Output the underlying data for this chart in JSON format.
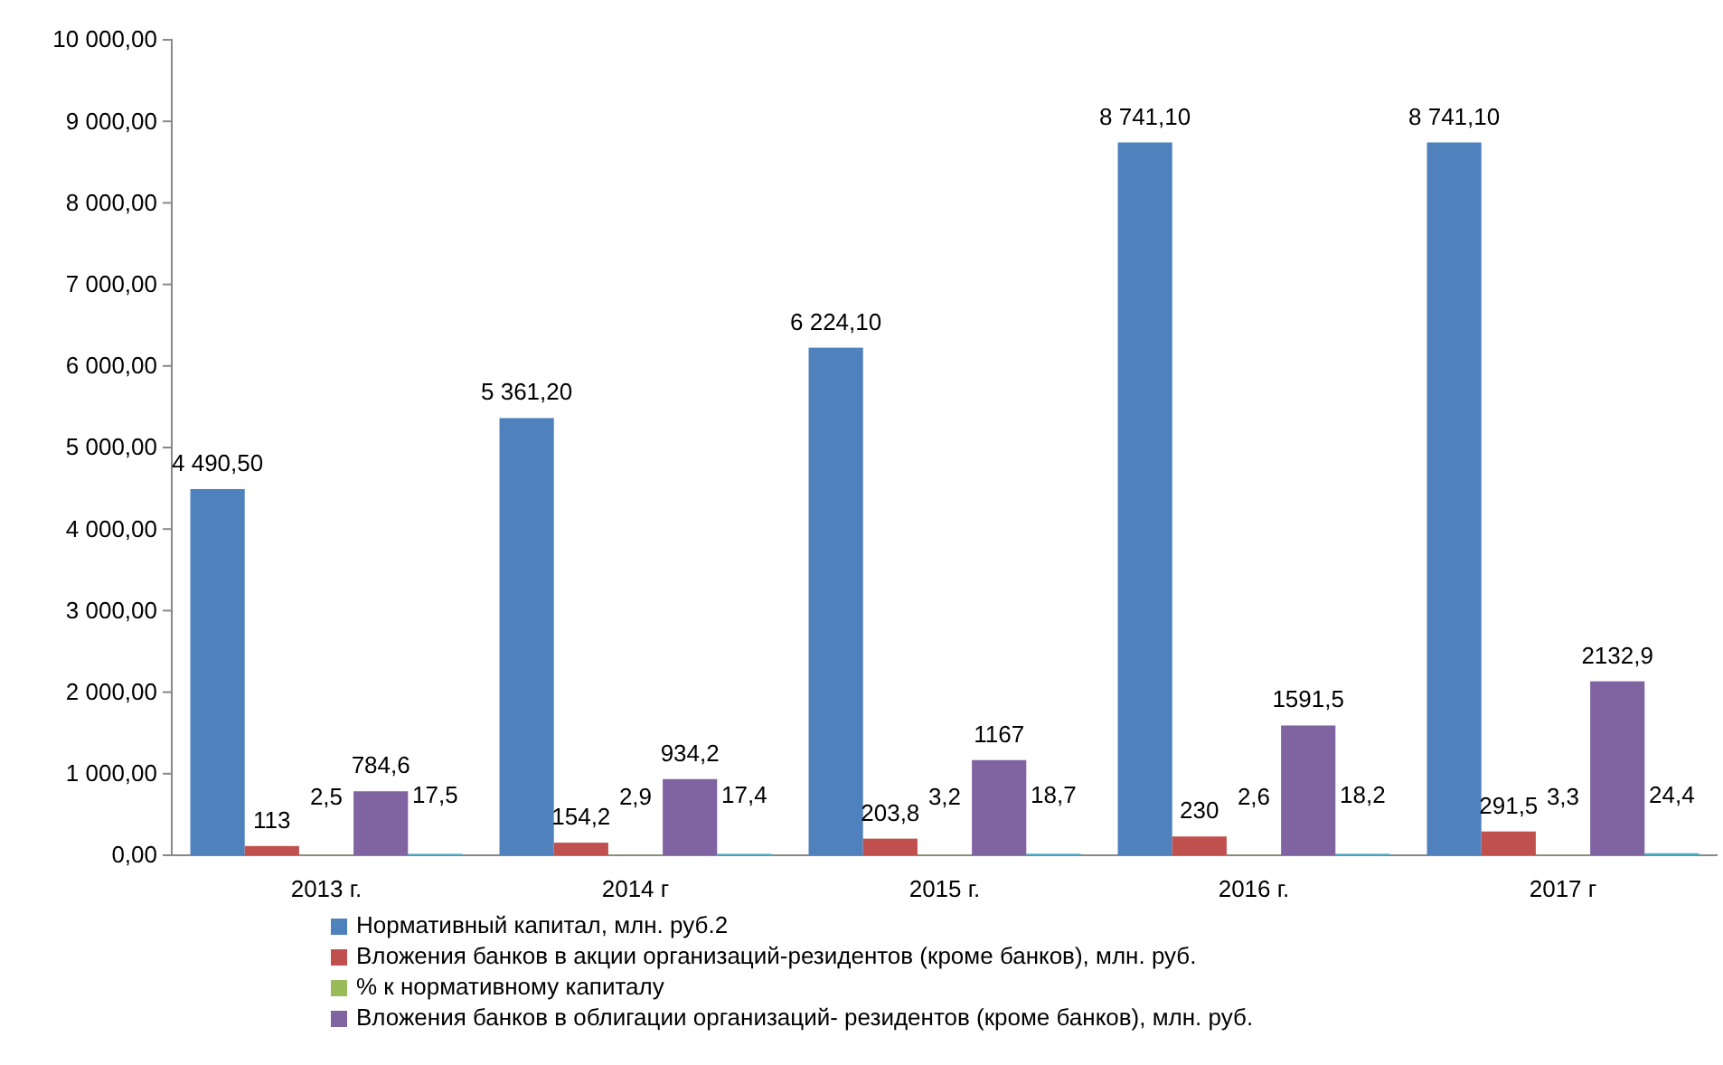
{
  "chart_data": {
    "type": "bar",
    "categories": [
      "2013 г.",
      "2014 г",
      "2015 г.",
      "2016 г.",
      "2017 г"
    ],
    "series": [
      {
        "name": "Нормативный капитал, млн. руб.2",
        "color": "#4f81bd",
        "values": [
          4490.5,
          5361.2,
          6224.1,
          8741.1,
          8741.1
        ],
        "value_labels": [
          "4 490,50",
          "5 361,20",
          "6 224,10",
          "8 741,10",
          "8 741,10"
        ]
      },
      {
        "name": "Вложения банков в  акции организаций-резидентов (кроме банков), млн. руб.",
        "color": "#c0504d",
        "values": [
          113,
          154.2,
          203.8,
          230,
          291.5
        ],
        "value_labels": [
          "113",
          "154,2",
          "203,8",
          "230",
          "291,5"
        ]
      },
      {
        "name": "% к нормативному капиталу",
        "color": "#9bbb59",
        "values": [
          2.5,
          2.9,
          3.2,
          2.6,
          3.3
        ],
        "value_labels": [
          "2,5",
          "2,9",
          "3,2",
          "2,6",
          "3,3"
        ]
      },
      {
        "name": "Вложения банков в  облигации организаций- резидентов (кроме банков), млн. руб.",
        "color": "#8064a2",
        "values": [
          784.6,
          934.2,
          1167,
          1591.5,
          2132.9
        ],
        "value_labels": [
          "784,6",
          "934,2",
          "1167",
          "1591,5",
          "2132,9"
        ]
      },
      {
        "color": "#4bacc6",
        "values": [
          17.5,
          17.4,
          18.7,
          18.2,
          24.4
        ],
        "value_labels": [
          "17,5",
          "17,4",
          "18,7",
          "18,2",
          "24,4"
        ]
      }
    ],
    "ylim": [
      0,
      10000
    ],
    "yticks": [
      {
        "value": 0,
        "label": "0,00"
      },
      {
        "value": 1000,
        "label": "1 000,00"
      },
      {
        "value": 2000,
        "label": "2 000,00"
      },
      {
        "value": 3000,
        "label": "3 000,00"
      },
      {
        "value": 4000,
        "label": "4 000,00"
      },
      {
        "value": 5000,
        "label": "5 000,00"
      },
      {
        "value": 6000,
        "label": "6 000,00"
      },
      {
        "value": 7000,
        "label": "7 000,00"
      },
      {
        "value": 8000,
        "label": "8 000,00"
      },
      {
        "value": 9000,
        "label": "9 000,00"
      },
      {
        "value": 10000,
        "label": "10 000,00"
      }
    ],
    "grid": false,
    "legend": "bottom"
  }
}
